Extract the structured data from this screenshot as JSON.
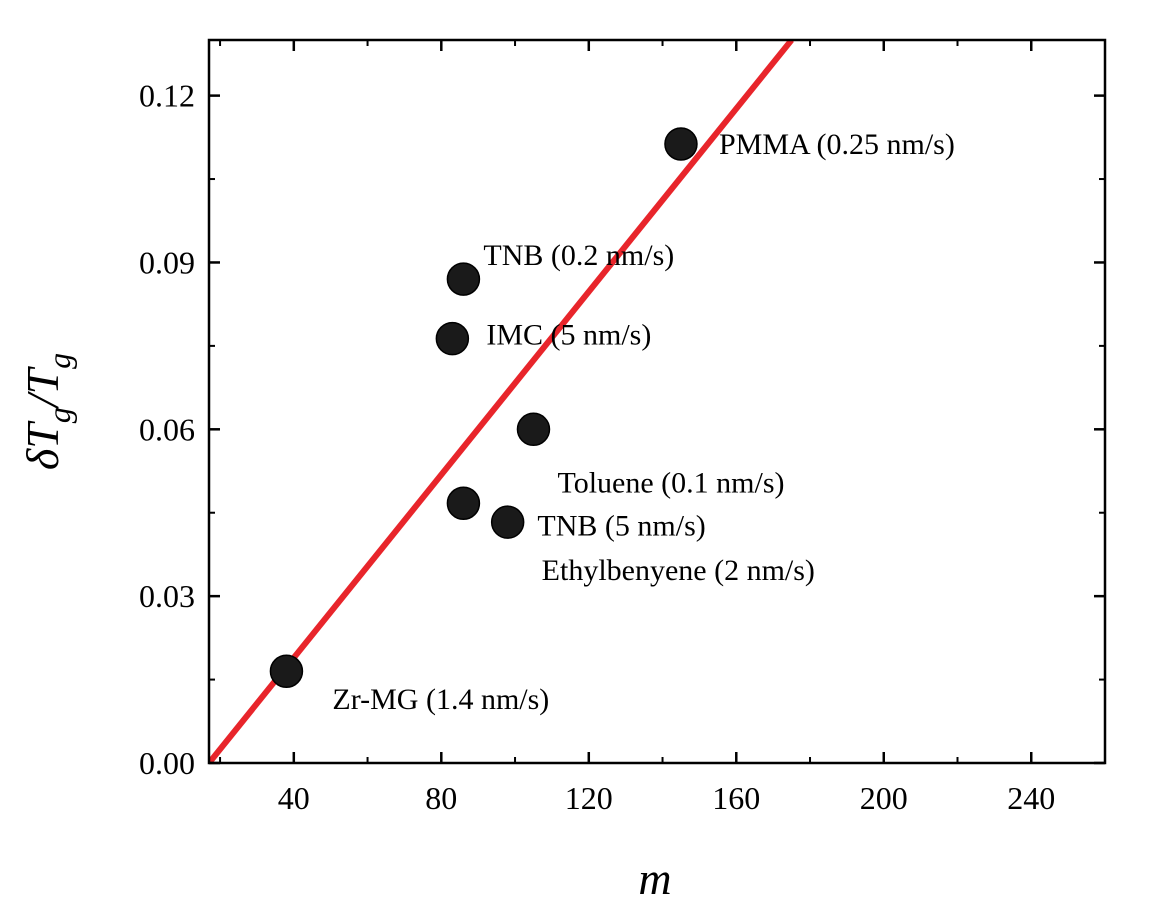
{
  "chart_data": {
    "type": "scatter",
    "title": "",
    "xlabel": "m",
    "ylabel": {
      "main": "δT",
      "sub1": "g",
      "slash": "/T",
      "sub2": "g"
    },
    "xlim": [
      17,
      260
    ],
    "ylim": [
      0.0,
      0.13
    ],
    "x_ticks": [
      40,
      80,
      120,
      160,
      200,
      240
    ],
    "x_tick_labels": [
      "40",
      "80",
      "120",
      "160",
      "200",
      "240"
    ],
    "y_ticks": [
      0.0,
      0.03,
      0.06,
      0.09,
      0.12
    ],
    "y_tick_labels": [
      "0.00",
      "0.03",
      "0.06",
      "0.09",
      "0.12"
    ],
    "grid": false,
    "legend": "none",
    "series": [
      {
        "points": [
          {
            "x": 38,
            "y": 0.0165,
            "label": "Zr-MG (1.4 nm/s)"
          },
          {
            "x": 83,
            "y": 0.0763,
            "label": "IMC (5 nm/s)"
          },
          {
            "x": 86,
            "y": 0.087,
            "label": "TNB (0.2 nm/s)"
          },
          {
            "x": 86,
            "y": 0.0467,
            "label": "TNB (5 nm/s)"
          },
          {
            "x": 98,
            "y": 0.0433,
            "label": "Ethylbenyene (2 nm/s)"
          },
          {
            "x": 105,
            "y": 0.06,
            "label": "Toluene (0.1 nm/s)"
          },
          {
            "x": 145,
            "y": 0.1113,
            "label": "PMMA (0.25 nm/s)"
          }
        ]
      }
    ],
    "fit_line": {
      "x": [
        17,
        175
      ],
      "y": [
        0.0,
        0.13
      ]
    },
    "colors": {
      "points": "#1a1a1a",
      "fit_line": "#e8252b",
      "axes": "#000000"
    }
  }
}
